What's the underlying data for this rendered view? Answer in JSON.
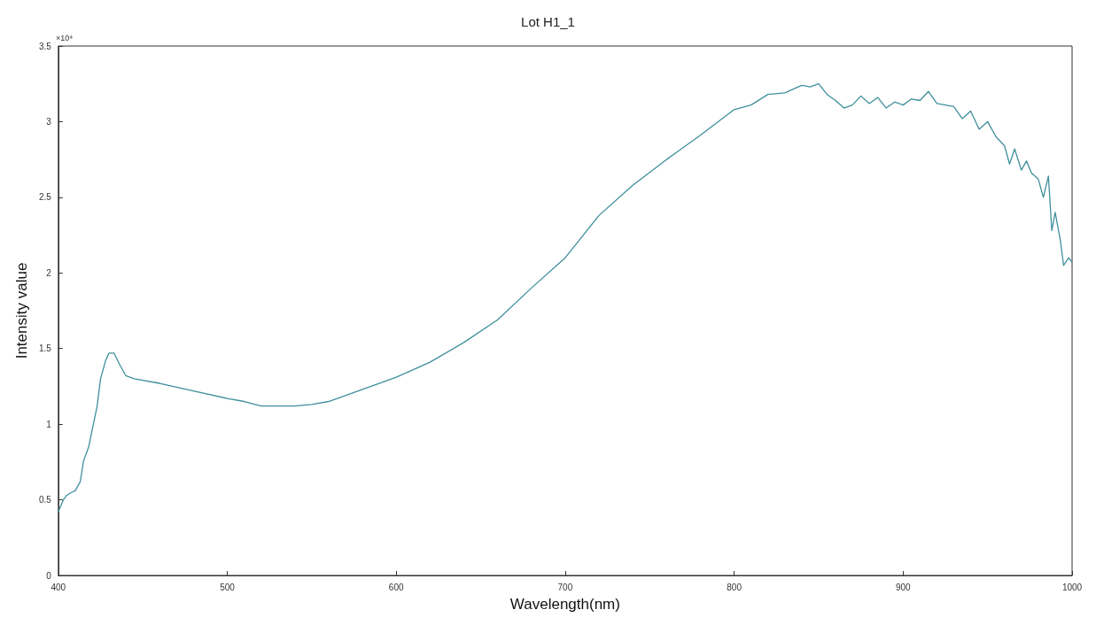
{
  "chart_data": {
    "type": "line",
    "title": "Lot H1_1",
    "xlabel": "Wavelength(nm)",
    "ylabel": "Intensity value",
    "annotations": [
      "×10⁴"
    ],
    "x": [
      400,
      403,
      405,
      408,
      410,
      413,
      415,
      418,
      420,
      423,
      425,
      428,
      430,
      433,
      436,
      440,
      445,
      460,
      480,
      500,
      510,
      520,
      530,
      540,
      550,
      560,
      580,
      600,
      620,
      640,
      660,
      680,
      700,
      720,
      740,
      760,
      780,
      800,
      810,
      820,
      830,
      840,
      845,
      850,
      855,
      860,
      865,
      870,
      875,
      880,
      885,
      890,
      895,
      900,
      905,
      910,
      915,
      920,
      925,
      930,
      935,
      940,
      945,
      950,
      955,
      960,
      963,
      966,
      970,
      973,
      976,
      980,
      983,
      986,
      988,
      990,
      993,
      995,
      998,
      1000
    ],
    "series": [
      {
        "color": "#3f8f9c",
        "values": [
          0.42,
          0.5,
          0.53,
          0.55,
          0.56,
          0.62,
          0.76,
          0.85,
          0.96,
          1.12,
          1.3,
          1.42,
          1.47,
          1.47,
          1.4,
          1.32,
          1.3,
          1.27,
          1.22,
          1.17,
          1.15,
          1.12,
          1.12,
          1.12,
          1.13,
          1.15,
          1.23,
          1.31,
          1.41,
          1.54,
          1.69,
          1.9,
          2.1,
          2.38,
          2.58,
          2.75,
          2.91,
          3.08,
          3.11,
          3.18,
          3.19,
          3.24,
          3.23,
          3.25,
          3.18,
          3.14,
          3.09,
          3.11,
          3.17,
          3.12,
          3.16,
          3.09,
          3.13,
          3.11,
          3.15,
          3.14,
          3.2,
          3.12,
          3.11,
          3.1,
          3.02,
          3.07,
          2.95,
          3.0,
          2.9,
          2.84,
          2.72,
          2.82,
          2.68,
          2.74,
          2.66,
          2.62,
          2.5,
          2.64,
          2.28,
          2.4,
          2.22,
          2.05,
          2.1,
          2.07
        ]
      }
    ],
    "xlim": [
      400,
      1000
    ],
    "xticks": [
      400,
      500,
      600,
      700,
      800,
      900,
      1000
    ],
    "ylim": [
      0,
      3.5
    ],
    "yticks": [
      0,
      0.5,
      1,
      1.5,
      2,
      2.5,
      3,
      3.5
    ],
    "grid": false,
    "marker": "none",
    "line_style": "solid"
  }
}
